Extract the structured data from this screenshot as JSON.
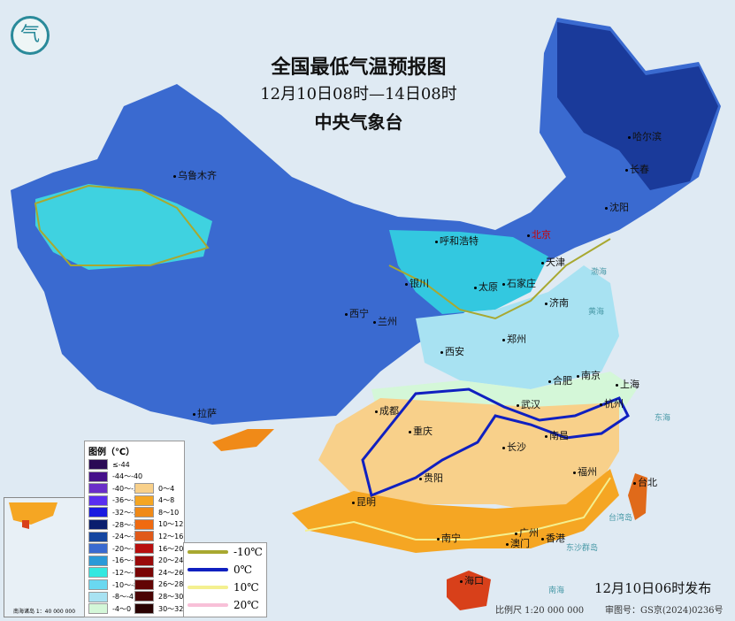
{
  "header": {
    "title": "全国最低气温预报图",
    "period": "12月10日08时—14日08时",
    "issuer": "中央气象台",
    "logo": "cma-logo"
  },
  "cities": [
    {
      "name": "乌鲁木齐",
      "capital": false
    },
    {
      "name": "哈尔滨",
      "capital": false
    },
    {
      "name": "长春",
      "capital": false
    },
    {
      "name": "沈阳",
      "capital": false
    },
    {
      "name": "呼和浩特",
      "capital": false
    },
    {
      "name": "北京",
      "capital": true
    },
    {
      "name": "天津",
      "capital": false
    },
    {
      "name": "银川",
      "capital": false
    },
    {
      "name": "太原",
      "capital": false
    },
    {
      "name": "石家庄",
      "capital": false
    },
    {
      "name": "济南",
      "capital": false
    },
    {
      "name": "西宁",
      "capital": false
    },
    {
      "name": "兰州",
      "capital": false
    },
    {
      "name": "郑州",
      "capital": false
    },
    {
      "name": "西安",
      "capital": false
    },
    {
      "name": "合肥",
      "capital": false
    },
    {
      "name": "南京",
      "capital": false
    },
    {
      "name": "上海",
      "capital": false
    },
    {
      "name": "杭州",
      "capital": false
    },
    {
      "name": "拉萨",
      "capital": false
    },
    {
      "name": "成都",
      "capital": false
    },
    {
      "name": "武汉",
      "capital": false
    },
    {
      "name": "重庆",
      "capital": false
    },
    {
      "name": "南昌",
      "capital": false
    },
    {
      "name": "长沙",
      "capital": false
    },
    {
      "name": "福州",
      "capital": false
    },
    {
      "name": "台北",
      "capital": false
    },
    {
      "name": "贵阳",
      "capital": false
    },
    {
      "name": "昆明",
      "capital": false
    },
    {
      "name": "广州",
      "capital": false
    },
    {
      "name": "南宁",
      "capital": false
    },
    {
      "name": "澳门",
      "capital": false
    },
    {
      "name": "香港",
      "capital": false
    },
    {
      "name": "海口",
      "capital": false
    }
  ],
  "seas": [
    "渤海",
    "黄海",
    "东海",
    "台湾岛",
    "东沙群岛",
    "南海"
  ],
  "legend": {
    "title": "图例（℃）",
    "cold": [
      {
        "label": "≤-44",
        "color": "#2a0a55"
      },
      {
        "label": "-44～-40",
        "color": "#45108a"
      },
      {
        "label": "-40～-36",
        "color": "#6a2ec8"
      },
      {
        "label": "-36～-32",
        "color": "#5a2ef0"
      },
      {
        "label": "-32～-28",
        "color": "#1a1ae0"
      },
      {
        "label": "-28～-24",
        "color": "#0a1e6e"
      },
      {
        "label": "-24～-20",
        "color": "#1546a0"
      },
      {
        "label": "-20～-16",
        "color": "#3a6ad0"
      },
      {
        "label": "-16～-12",
        "color": "#2a9ad8"
      },
      {
        "label": "-12～-10",
        "color": "#33e8e0"
      },
      {
        "label": "-10～-8",
        "color": "#6ad8f0"
      },
      {
        "label": "-8～-4",
        "color": "#a8e2f2"
      },
      {
        "label": "-4～0",
        "color": "#d4f7d8"
      }
    ],
    "warm": [
      {
        "label": "0～4",
        "color": "#f8d08a"
      },
      {
        "label": "4～8",
        "color": "#f5a623"
      },
      {
        "label": "8～10",
        "color": "#f08a18"
      },
      {
        "label": "10～12",
        "color": "#f06a10"
      },
      {
        "label": "12～16",
        "color": "#e05a1a"
      },
      {
        "label": "16～20",
        "color": "#b81010"
      },
      {
        "label": "20～24",
        "color": "#9a0a0a"
      },
      {
        "label": "24～26",
        "color": "#7a0606"
      },
      {
        "label": "26～28",
        "color": "#620505"
      },
      {
        "label": "28～30",
        "color": "#4a0404"
      },
      {
        "label": "30～32",
        "color": "#2a0202"
      }
    ],
    "isotherms": [
      {
        "label": "-10℃",
        "color": "#a8a830"
      },
      {
        "label": "0℃",
        "color": "#1020c0"
      },
      {
        "label": "10℃",
        "color": "#f4f090"
      },
      {
        "label": "20℃",
        "color": "#f8c0d8"
      }
    ]
  },
  "inset": {
    "caption": "南海诸岛 1：40 000 000"
  },
  "footer": {
    "issued": "12月10日06时发布",
    "scale": "比例尺 1:20 000 000",
    "review": "审图号：GS京(2024)0236号"
  }
}
